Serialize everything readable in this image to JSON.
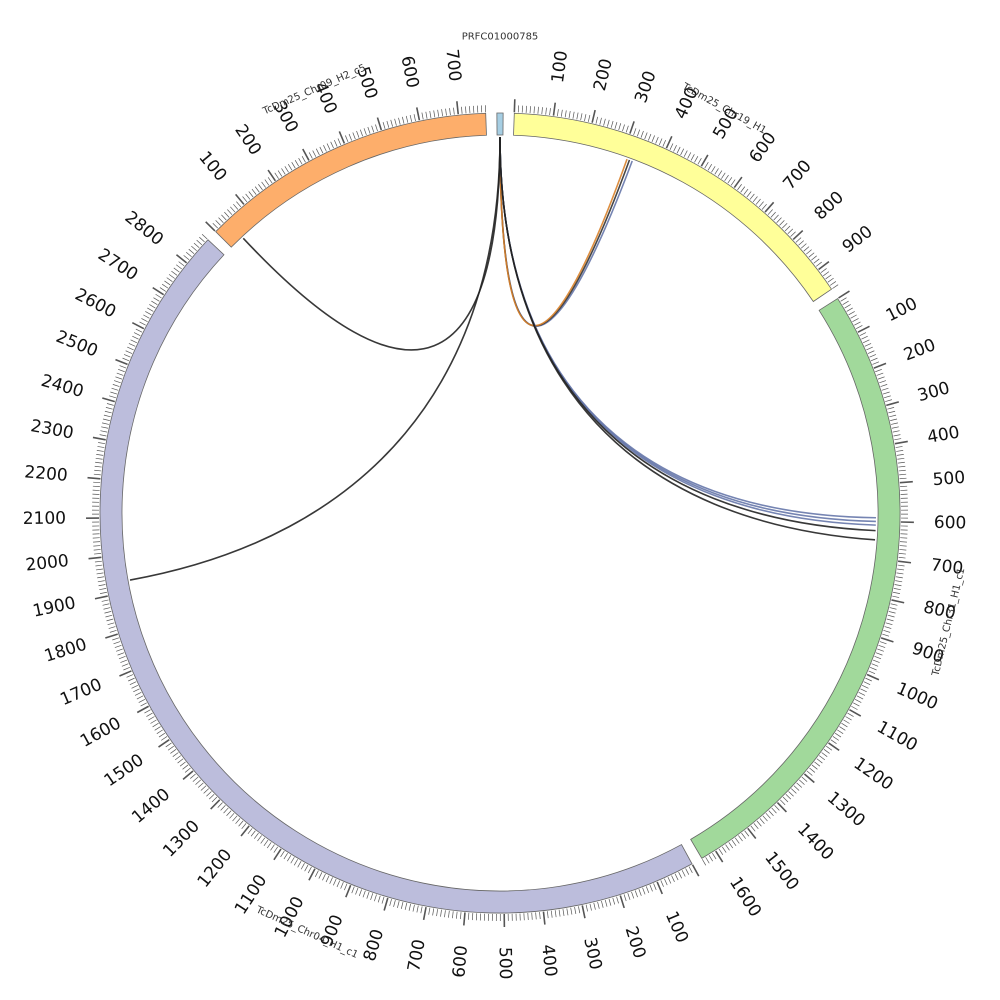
{
  "chart_data": {
    "type": "circos",
    "segments": [
      {
        "name": "PRFC01000785",
        "length": 16,
        "color": "#a6cee3",
        "ticks": []
      },
      {
        "name": "TcDm25_Chr19_H1",
        "length": 960,
        "color": "#ffff99",
        "ticks": [
          "100",
          "200",
          "300",
          "400",
          "500",
          "600",
          "700",
          "800",
          "900"
        ]
      },
      {
        "name": "TcDm25_Chr31_H1_c1",
        "length": 1640,
        "color": "#a1d99b",
        "ticks": [
          "100",
          "200",
          "300",
          "400",
          "500",
          "600",
          "700",
          "800",
          "900",
          "1000",
          "1100",
          "1200",
          "1300",
          "1400",
          "1500",
          "1600"
        ]
      },
      {
        "name": "TcDm25_Chr04_H1_c1",
        "length": 2880,
        "color": "#bcbddc",
        "ticks": [
          "100",
          "200",
          "300",
          "400",
          "500",
          "600",
          "700",
          "800",
          "900",
          "1000",
          "1100",
          "1200",
          "1300",
          "1400",
          "1500",
          "1600",
          "1700",
          "1800",
          "1900",
          "2000",
          "2100",
          "2200",
          "2300",
          "2400",
          "2500",
          "2600",
          "2700",
          "2800"
        ]
      },
      {
        "name": "TcDm25_Chr09_H2_c5",
        "length": 770,
        "color": "#fdae6b",
        "ticks": [
          "100",
          "200",
          "300",
          "400",
          "500",
          "600",
          "700"
        ]
      }
    ],
    "links": [
      {
        "source_segment": "PRFC01000785",
        "source_pos": 8,
        "target_segment": "TcDm25_Chr19_H1",
        "target_pos": 330,
        "color": "#6677aa"
      },
      {
        "source_segment": "PRFC01000785",
        "source_pos": 8,
        "target_segment": "TcDm25_Chr19_H1",
        "target_pos": 322,
        "color": "#333333"
      },
      {
        "source_segment": "PRFC01000785",
        "source_pos": 8,
        "target_segment": "TcDm25_Chr19_H1",
        "target_pos": 315,
        "color": "#d9822b"
      },
      {
        "source_segment": "PRFC01000785",
        "source_pos": 8,
        "target_segment": "TcDm25_Chr31_H1_c1",
        "target_pos": 590,
        "color": "#6677aa"
      },
      {
        "source_segment": "PRFC01000785",
        "source_pos": 8,
        "target_segment": "TcDm25_Chr31_H1_c1",
        "target_pos": 600,
        "color": "#6677aa"
      },
      {
        "source_segment": "PRFC01000785",
        "source_pos": 8,
        "target_segment": "TcDm25_Chr31_H1_c1",
        "target_pos": 610,
        "color": "#6677aa"
      },
      {
        "source_segment": "PRFC01000785",
        "source_pos": 8,
        "target_segment": "TcDm25_Chr31_H1_c1",
        "target_pos": 625,
        "color": "#222222"
      },
      {
        "source_segment": "PRFC01000785",
        "source_pos": 8,
        "target_segment": "TcDm25_Chr31_H1_c1",
        "target_pos": 650,
        "color": "#222222"
      },
      {
        "source_segment": "PRFC01000785",
        "source_pos": 8,
        "target_segment": "TcDm25_Chr04_H1_c1",
        "target_pos": 1930,
        "color": "#222222"
      },
      {
        "source_segment": "TcDm25_Chr09_H2_c5",
        "source_pos": 40,
        "target_segment": "PRFC01000785",
        "target_pos": 8,
        "color": "#222222"
      }
    ]
  }
}
